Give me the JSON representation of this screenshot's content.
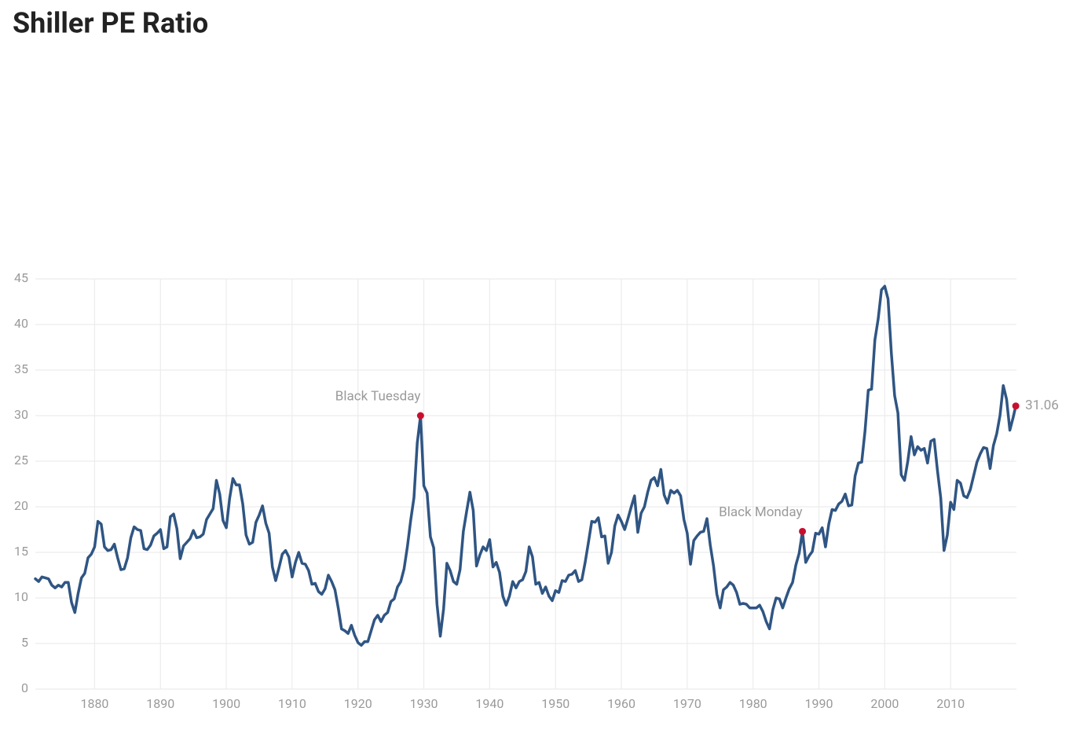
{
  "chart_data": {
    "type": "line",
    "title": "Shiller PE Ratio",
    "xlim": [
      1871,
      2020
    ],
    "ylim": [
      0,
      45
    ],
    "xticks": [
      1880,
      1890,
      1900,
      1910,
      1920,
      1930,
      1940,
      1950,
      1960,
      1970,
      1980,
      1990,
      2000,
      2010
    ],
    "yticks": [
      0,
      5,
      10,
      15,
      20,
      25,
      30,
      35,
      40,
      45
    ],
    "grid": true,
    "x": [
      1871,
      1871.5,
      1872,
      1872.5,
      1873,
      1873.5,
      1874,
      1874.5,
      1875,
      1875.5,
      1876,
      1876.5,
      1877,
      1877.5,
      1878,
      1878.5,
      1879,
      1879.5,
      1880,
      1880.5,
      1881,
      1881.5,
      1882,
      1882.5,
      1883,
      1883.5,
      1884,
      1884.5,
      1885,
      1885.5,
      1886,
      1886.5,
      1887,
      1887.5,
      1888,
      1888.5,
      1889,
      1889.5,
      1890,
      1890.5,
      1891,
      1891.5,
      1892,
      1892.5,
      1893,
      1893.5,
      1894,
      1894.5,
      1895,
      1895.5,
      1896,
      1896.5,
      1897,
      1897.5,
      1898,
      1898.5,
      1899,
      1899.5,
      1900,
      1900.5,
      1901,
      1901.5,
      1902,
      1902.5,
      1903,
      1903.5,
      1904,
      1904.5,
      1905,
      1905.5,
      1906,
      1906.5,
      1907,
      1907.5,
      1908,
      1908.5,
      1909,
      1909.5,
      1910,
      1910.5,
      1911,
      1911.5,
      1912,
      1912.5,
      1913,
      1913.5,
      1914,
      1914.5,
      1915,
      1915.5,
      1916,
      1916.5,
      1917,
      1917.5,
      1918,
      1918.5,
      1919,
      1919.5,
      1920,
      1920.5,
      1921,
      1921.5,
      1922,
      1922.5,
      1923,
      1923.5,
      1924,
      1924.5,
      1925,
      1925.5,
      1926,
      1926.5,
      1927,
      1927.5,
      1928,
      1928.5,
      1929,
      1929.5,
      1930,
      1930.5,
      1931,
      1931.5,
      1932,
      1932.5,
      1933,
      1933.5,
      1934,
      1934.5,
      1935,
      1935.5,
      1936,
      1936.5,
      1937,
      1937.5,
      1938,
      1938.5,
      1939,
      1939.5,
      1940,
      1940.5,
      1941,
      1941.5,
      1942,
      1942.5,
      1943,
      1943.5,
      1944,
      1944.5,
      1945,
      1945.5,
      1946,
      1946.5,
      1947,
      1947.5,
      1948,
      1948.5,
      1949,
      1949.5,
      1950,
      1950.5,
      1951,
      1951.5,
      1952,
      1952.5,
      1953,
      1953.5,
      1954,
      1954.5,
      1955,
      1955.5,
      1956,
      1956.5,
      1957,
      1957.5,
      1958,
      1958.5,
      1959,
      1959.5,
      1960,
      1960.5,
      1961,
      1961.5,
      1962,
      1962.5,
      1963,
      1963.5,
      1964,
      1964.5,
      1965,
      1965.5,
      1966,
      1966.5,
      1967,
      1967.5,
      1968,
      1968.5,
      1969,
      1969.5,
      1970,
      1970.5,
      1971,
      1971.5,
      1972,
      1972.5,
      1973,
      1973.5,
      1974,
      1974.5,
      1975,
      1975.5,
      1976,
      1976.5,
      1977,
      1977.5,
      1978,
      1978.5,
      1979,
      1979.5,
      1980,
      1980.5,
      1981,
      1981.5,
      1982,
      1982.5,
      1983,
      1983.5,
      1984,
      1984.5,
      1985,
      1985.5,
      1986,
      1986.5,
      1987,
      1987.5,
      1988,
      1988.5,
      1989,
      1989.5,
      1990,
      1990.5,
      1991,
      1991.5,
      1992,
      1992.5,
      1993,
      1993.5,
      1994,
      1994.5,
      1995,
      1995.5,
      1996,
      1996.5,
      1997,
      1997.5,
      1998,
      1998.5,
      1999,
      1999.5,
      2000,
      2000.5,
      2001,
      2001.5,
      2002,
      2002.5,
      2003,
      2003.5,
      2004,
      2004.5,
      2005,
      2005.5,
      2006,
      2006.5,
      2007,
      2007.5,
      2008,
      2008.5,
      2009,
      2009.5,
      2010,
      2010.5,
      2011,
      2011.5,
      2012,
      2012.5,
      2013,
      2013.5,
      2014,
      2014.5,
      2015,
      2015.5,
      2016,
      2016.5,
      2017,
      2017.5,
      2018,
      2018.5,
      2019,
      2019.5,
      2019.9
    ],
    "series": [
      {
        "color": "#2f5583",
        "values": [
          12.1,
          11.8,
          12.3,
          12.2,
          12.1,
          11.4,
          11.1,
          11.4,
          11.2,
          11.7,
          11.7,
          9.5,
          8.4,
          10.5,
          12.2,
          12.7,
          14.4,
          14.8,
          15.6,
          18.4,
          18.1,
          15.6,
          15.2,
          15.3,
          15.9,
          14.4,
          13.1,
          13.2,
          14.4,
          16.6,
          17.8,
          17.5,
          17.4,
          15.4,
          15.3,
          15.8,
          16.8,
          17.1,
          17.5,
          15.4,
          15.6,
          18.9,
          19.2,
          17.6,
          14.3,
          15.7,
          16.1,
          16.5,
          17.4,
          16.6,
          16.7,
          17.0,
          18.6,
          19.2,
          19.8,
          22.9,
          21.4,
          18.5,
          17.7,
          20.9,
          23.1,
          22.4,
          22.4,
          20.3,
          16.9,
          15.9,
          16.1,
          18.3,
          19.1,
          20.1,
          18.2,
          17.1,
          13.4,
          11.9,
          13.3,
          14.8,
          15.2,
          14.5,
          12.3,
          13.9,
          15.0,
          13.8,
          13.7,
          13.0,
          11.5,
          11.6,
          10.7,
          10.4,
          11.0,
          12.5,
          11.8,
          10.9,
          8.9,
          6.6,
          6.4,
          6.1,
          7.0,
          5.9,
          5.1,
          4.8,
          5.2,
          5.2,
          6.4,
          7.6,
          8.1,
          7.4,
          8.1,
          8.4,
          9.6,
          9.9,
          11.2,
          11.8,
          13.2,
          15.6,
          18.5,
          21.0,
          27.0,
          30.0,
          22.3,
          21.5,
          16.7,
          15.5,
          9.3,
          5.8,
          8.8,
          13.8,
          13.0,
          11.8,
          11.5,
          13.1,
          17.3,
          19.5,
          21.6,
          19.6,
          13.5,
          14.7,
          15.6,
          15.2,
          16.4,
          13.4,
          13.9,
          12.8,
          10.2,
          9.2,
          10.2,
          11.8,
          11.1,
          11.8,
          12.0,
          12.9,
          15.6,
          14.5,
          11.5,
          11.7,
          10.5,
          11.2,
          10.2,
          9.7,
          10.8,
          10.6,
          11.9,
          11.8,
          12.5,
          12.6,
          13.0,
          11.8,
          12.0,
          13.9,
          16.1,
          18.4,
          18.3,
          18.8,
          16.7,
          16.8,
          13.8,
          15.0,
          17.9,
          19.1,
          18.4,
          17.5,
          18.7,
          20.0,
          21.2,
          17.2,
          19.3,
          20.0,
          21.6,
          22.9,
          23.2,
          22.3,
          24.1,
          21.3,
          20.4,
          21.8,
          21.5,
          21.8,
          21.2,
          18.6,
          17.1,
          13.7,
          16.3,
          16.8,
          17.2,
          17.3,
          18.7,
          15.8,
          13.5,
          10.4,
          8.9,
          10.9,
          11.2,
          11.7,
          11.4,
          10.6,
          9.3,
          9.4,
          9.3,
          8.9,
          8.9,
          8.9,
          9.2,
          8.5,
          7.4,
          6.6,
          8.7,
          10.0,
          9.9,
          8.9,
          10.0,
          11.0,
          11.7,
          13.6,
          14.9,
          17.3,
          13.9,
          14.6,
          15.1,
          17.1,
          17.0,
          17.7,
          15.6,
          18.1,
          19.7,
          19.6,
          20.3,
          20.6,
          21.4,
          20.1,
          20.2,
          23.4,
          24.8,
          24.9,
          28.3,
          32.8,
          32.9,
          38.3,
          40.6,
          43.8,
          44.2,
          42.8,
          36.9,
          32.2,
          30.3,
          23.5,
          22.9,
          25.0,
          27.7,
          25.7,
          26.6,
          26.2,
          26.4,
          24.8,
          27.2,
          27.4,
          24.0,
          21.0,
          15.2,
          16.9,
          20.5,
          19.7,
          22.9,
          22.6,
          21.2,
          21.0,
          21.9,
          23.4,
          24.9,
          25.8,
          26.5,
          26.4,
          24.2,
          26.7,
          28.0,
          30.0,
          33.3,
          31.8,
          28.4,
          29.8,
          31.06
        ]
      }
    ],
    "annotations": [
      {
        "text": "Black Tuesday",
        "x": 1929.5,
        "y": 30.0,
        "color": "#c8102e"
      },
      {
        "text": "Black Monday",
        "x": 1987.5,
        "y": 17.3,
        "color": "#c8102e"
      },
      {
        "text": "31.06",
        "x": 2019.9,
        "y": 31.06,
        "color": "#c8102e"
      }
    ]
  }
}
